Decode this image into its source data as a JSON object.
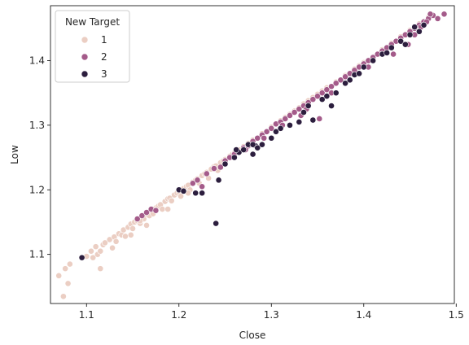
{
  "chart_data": {
    "type": "scatter",
    "title": "",
    "xlabel": "Close",
    "ylabel": "Low",
    "xlim": [
      1.061,
      1.498
    ],
    "ylim": [
      1.024,
      1.485
    ],
    "x_ticks": [
      "1.1",
      "1.2",
      "1.3",
      "1.4",
      "1.5"
    ],
    "x_tick_values": [
      1.1,
      1.2,
      1.3,
      1.4,
      1.5
    ],
    "y_ticks": [
      "1.1",
      "1.2",
      "1.3",
      "1.4"
    ],
    "y_tick_values": [
      1.1,
      1.2,
      1.3,
      1.4
    ],
    "grid": false,
    "legend": {
      "title": "New Target",
      "placement": "top-left",
      "entries": [
        {
          "label": "1",
          "color": "#ebcec3"
        },
        {
          "label": "2",
          "color": "#a45b8a"
        },
        {
          "label": "3",
          "color": "#2c1e3e"
        }
      ]
    },
    "series": [
      {
        "name": "1",
        "color": "#ebcec3",
        "points": [
          [
            1.07,
            1.067
          ],
          [
            1.075,
            1.035
          ],
          [
            1.077,
            1.078
          ],
          [
            1.082,
            1.085
          ],
          [
            1.08,
            1.055
          ],
          [
            1.1,
            1.097
          ],
          [
            1.105,
            1.105
          ],
          [
            1.107,
            1.095
          ],
          [
            1.11,
            1.112
          ],
          [
            1.112,
            1.1
          ],
          [
            1.115,
            1.078
          ],
          [
            1.118,
            1.115
          ],
          [
            1.12,
            1.118
          ],
          [
            1.125,
            1.123
          ],
          [
            1.128,
            1.11
          ],
          [
            1.13,
            1.127
          ],
          [
            1.132,
            1.12
          ],
          [
            1.135,
            1.132
          ],
          [
            1.138,
            1.13
          ],
          [
            1.14,
            1.138
          ],
          [
            1.142,
            1.128
          ],
          [
            1.145,
            1.142
          ],
          [
            1.148,
            1.147
          ],
          [
            1.15,
            1.14
          ],
          [
            1.152,
            1.15
          ],
          [
            1.155,
            1.152
          ],
          [
            1.158,
            1.148
          ],
          [
            1.16,
            1.157
          ],
          [
            1.162,
            1.155
          ],
          [
            1.165,
            1.162
          ],
          [
            1.168,
            1.16
          ],
          [
            1.17,
            1.168
          ],
          [
            1.172,
            1.163
          ],
          [
            1.175,
            1.172
          ],
          [
            1.178,
            1.175
          ],
          [
            1.18,
            1.177
          ],
          [
            1.182,
            1.17
          ],
          [
            1.185,
            1.182
          ],
          [
            1.188,
            1.186
          ],
          [
            1.19,
            1.187
          ],
          [
            1.192,
            1.183
          ],
          [
            1.195,
            1.192
          ],
          [
            1.198,
            1.195
          ],
          [
            1.2,
            1.197
          ],
          [
            1.202,
            1.19
          ],
          [
            1.205,
            1.202
          ],
          [
            1.208,
            1.205
          ],
          [
            1.21,
            1.207
          ],
          [
            1.212,
            1.2
          ],
          [
            1.215,
            1.212
          ],
          [
            1.218,
            1.215
          ],
          [
            1.22,
            1.217
          ],
          [
            1.222,
            1.21
          ],
          [
            1.225,
            1.222
          ],
          [
            1.228,
            1.225
          ],
          [
            1.23,
            1.227
          ],
          [
            1.232,
            1.218
          ],
          [
            1.235,
            1.232
          ],
          [
            1.238,
            1.236
          ],
          [
            1.24,
            1.237
          ],
          [
            1.242,
            1.23
          ],
          [
            1.245,
            1.242
          ],
          [
            1.248,
            1.245
          ],
          [
            1.25,
            1.247
          ],
          [
            1.255,
            1.252
          ],
          [
            1.258,
            1.255
          ],
          [
            1.26,
            1.257
          ],
          [
            1.265,
            1.262
          ],
          [
            1.27,
            1.267
          ],
          [
            1.275,
            1.272
          ],
          [
            1.28,
            1.277
          ],
          [
            1.29,
            1.287
          ],
          [
            1.3,
            1.297
          ],
          [
            1.31,
            1.307
          ],
          [
            1.315,
            1.312
          ],
          [
            1.32,
            1.317
          ],
          [
            1.325,
            1.322
          ],
          [
            1.33,
            1.327
          ],
          [
            1.335,
            1.333
          ],
          [
            1.34,
            1.338
          ],
          [
            1.345,
            1.343
          ],
          [
            1.35,
            1.348
          ],
          [
            1.355,
            1.353
          ],
          [
            1.36,
            1.358
          ],
          [
            1.37,
            1.367
          ],
          [
            1.38,
            1.377
          ],
          [
            1.39,
            1.387
          ],
          [
            1.395,
            1.392
          ],
          [
            1.4,
            1.397
          ],
          [
            1.41,
            1.405
          ],
          [
            1.42,
            1.417
          ],
          [
            1.425,
            1.42
          ],
          [
            1.43,
            1.427
          ],
          [
            1.44,
            1.437
          ],
          [
            1.45,
            1.447
          ],
          [
            1.46,
            1.457
          ],
          [
            1.47,
            1.467
          ],
          [
            1.148,
            1.13
          ],
          [
            1.165,
            1.145
          ],
          [
            1.188,
            1.17
          ],
          [
            1.21,
            1.195
          ],
          [
            1.115,
            1.105
          ],
          [
            1.158,
            1.152
          ],
          [
            1.172,
            1.17
          ]
        ]
      },
      {
        "name": "2",
        "color": "#a45b8a",
        "points": [
          [
            1.155,
            1.155
          ],
          [
            1.16,
            1.16
          ],
          [
            1.165,
            1.165
          ],
          [
            1.17,
            1.17
          ],
          [
            1.175,
            1.168
          ],
          [
            1.215,
            1.21
          ],
          [
            1.22,
            1.215
          ],
          [
            1.23,
            1.225
          ],
          [
            1.238,
            1.233
          ],
          [
            1.25,
            1.245
          ],
          [
            1.255,
            1.25
          ],
          [
            1.26,
            1.255
          ],
          [
            1.265,
            1.258
          ],
          [
            1.27,
            1.265
          ],
          [
            1.275,
            1.268
          ],
          [
            1.28,
            1.275
          ],
          [
            1.285,
            1.28
          ],
          [
            1.29,
            1.285
          ],
          [
            1.295,
            1.29
          ],
          [
            1.3,
            1.295
          ],
          [
            1.305,
            1.302
          ],
          [
            1.31,
            1.305
          ],
          [
            1.315,
            1.31
          ],
          [
            1.32,
            1.315
          ],
          [
            1.325,
            1.32
          ],
          [
            1.33,
            1.325
          ],
          [
            1.335,
            1.33
          ],
          [
            1.34,
            1.335
          ],
          [
            1.345,
            1.34
          ],
          [
            1.35,
            1.345
          ],
          [
            1.355,
            1.35
          ],
          [
            1.36,
            1.355
          ],
          [
            1.365,
            1.36
          ],
          [
            1.37,
            1.365
          ],
          [
            1.375,
            1.37
          ],
          [
            1.38,
            1.375
          ],
          [
            1.385,
            1.38
          ],
          [
            1.39,
            1.385
          ],
          [
            1.395,
            1.39
          ],
          [
            1.4,
            1.395
          ],
          [
            1.405,
            1.4
          ],
          [
            1.41,
            1.405
          ],
          [
            1.415,
            1.41
          ],
          [
            1.42,
            1.415
          ],
          [
            1.425,
            1.42
          ],
          [
            1.43,
            1.425
          ],
          [
            1.435,
            1.43
          ],
          [
            1.44,
            1.435
          ],
          [
            1.445,
            1.44
          ],
          [
            1.45,
            1.445
          ],
          [
            1.455,
            1.45
          ],
          [
            1.46,
            1.455
          ],
          [
            1.465,
            1.46
          ],
          [
            1.47,
            1.465
          ],
          [
            1.475,
            1.47
          ],
          [
            1.48,
            1.465
          ],
          [
            1.487,
            1.472
          ],
          [
            1.472,
            1.472
          ],
          [
            1.455,
            1.44
          ],
          [
            1.448,
            1.425
          ],
          [
            1.432,
            1.41
          ],
          [
            1.352,
            1.31
          ],
          [
            1.332,
            1.315
          ],
          [
            1.292,
            1.28
          ],
          [
            1.272,
            1.262
          ],
          [
            1.245,
            1.235
          ],
          [
            1.225,
            1.205
          ],
          [
            1.468,
            1.46
          ],
          [
            1.462,
            1.452
          ],
          [
            1.39,
            1.378
          ],
          [
            1.365,
            1.35
          ],
          [
            1.338,
            1.325
          ],
          [
            1.312,
            1.3
          ],
          [
            1.405,
            1.39
          ],
          [
            1.42,
            1.41
          ]
        ]
      },
      {
        "name": "3",
        "color": "#2c1e3e",
        "points": [
          [
            1.095,
            1.095
          ],
          [
            1.2,
            1.2
          ],
          [
            1.205,
            1.198
          ],
          [
            1.218,
            1.195
          ],
          [
            1.225,
            1.195
          ],
          [
            1.24,
            1.148
          ],
          [
            1.243,
            1.215
          ],
          [
            1.25,
            1.24
          ],
          [
            1.26,
            1.25
          ],
          [
            1.265,
            1.258
          ],
          [
            1.27,
            1.262
          ],
          [
            1.275,
            1.27
          ],
          [
            1.28,
            1.255
          ],
          [
            1.283,
            1.268
          ],
          [
            1.285,
            1.265
          ],
          [
            1.29,
            1.27
          ],
          [
            1.3,
            1.28
          ],
          [
            1.305,
            1.29
          ],
          [
            1.31,
            1.295
          ],
          [
            1.32,
            1.3
          ],
          [
            1.33,
            1.305
          ],
          [
            1.335,
            1.32
          ],
          [
            1.34,
            1.33
          ],
          [
            1.345,
            1.308
          ],
          [
            1.355,
            1.34
          ],
          [
            1.36,
            1.345
          ],
          [
            1.365,
            1.33
          ],
          [
            1.37,
            1.35
          ],
          [
            1.38,
            1.365
          ],
          [
            1.385,
            1.37
          ],
          [
            1.39,
            1.378
          ],
          [
            1.395,
            1.38
          ],
          [
            1.4,
            1.39
          ],
          [
            1.41,
            1.4
          ],
          [
            1.42,
            1.41
          ],
          [
            1.425,
            1.412
          ],
          [
            1.43,
            1.42
          ],
          [
            1.44,
            1.43
          ],
          [
            1.445,
            1.425
          ],
          [
            1.45,
            1.44
          ],
          [
            1.455,
            1.452
          ],
          [
            1.46,
            1.445
          ],
          [
            1.465,
            1.455
          ],
          [
            1.28,
            1.27
          ],
          [
            1.262,
            1.262
          ]
        ]
      }
    ]
  }
}
